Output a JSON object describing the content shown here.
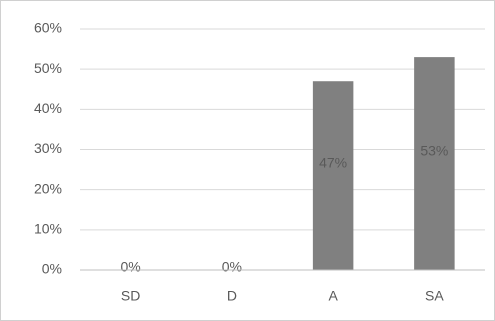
{
  "chart_data": {
    "type": "bar",
    "categories": [
      "SD",
      "D",
      "A",
      "SA"
    ],
    "values": [
      0,
      0,
      47,
      53
    ],
    "value_labels": [
      "0%",
      "0%",
      "47%",
      "53%"
    ],
    "color": "#808080",
    "ylim": [
      0,
      60
    ],
    "yticks": [
      {
        "value": 0,
        "label": "0%"
      },
      {
        "value": 10,
        "label": "10%"
      },
      {
        "value": 20,
        "label": "20%"
      },
      {
        "value": 30,
        "label": "30%"
      },
      {
        "value": 40,
        "label": "40%"
      },
      {
        "value": 50,
        "label": "50%"
      },
      {
        "value": 60,
        "label": "60%"
      }
    ],
    "grid": true
  }
}
